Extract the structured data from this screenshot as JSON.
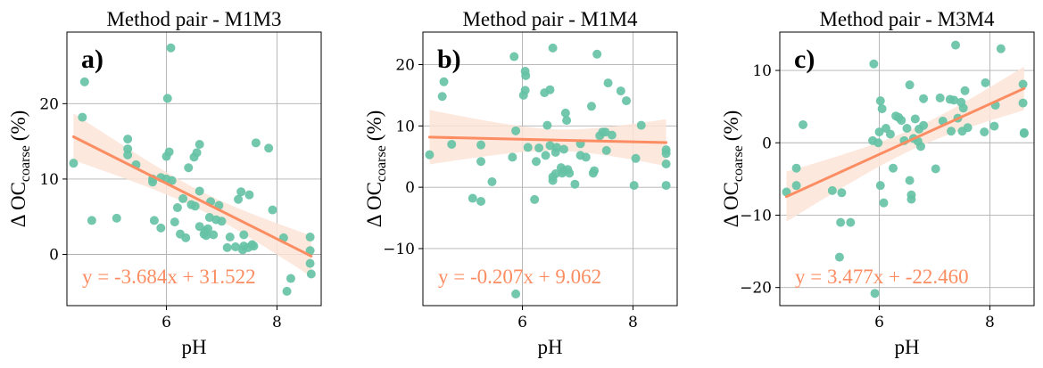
{
  "colors": {
    "points": "#66c2a5",
    "line": "#fc8d62",
    "band": "#fde4d8",
    "grid": "#b0b0b0"
  },
  "chart_data": [
    {
      "type": "scatter",
      "title": "Method pair - M1M3",
      "panel_label": "a)",
      "xlabel": "pH",
      "ylabel_main": "Δ OC",
      "ylabel_sub": "coarse",
      "ylabel_unit": "(%)",
      "equation": "y = -3.684x + 31.522",
      "fit": {
        "slope": -3.684,
        "intercept": 31.522
      },
      "xlim": [
        4.2,
        8.8
      ],
      "ylim": [
        -6.8,
        29.5
      ],
      "xticks": [
        6,
        8
      ],
      "yticks": [
        0,
        10,
        20
      ],
      "grid": true,
      "points": [
        [
          4.32,
          12.1
        ],
        [
          4.48,
          18.2
        ],
        [
          4.52,
          22.9
        ],
        [
          4.65,
          4.5
        ],
        [
          5.1,
          4.8
        ],
        [
          5.3,
          14.0
        ],
        [
          5.3,
          15.3
        ],
        [
          5.3,
          13.2
        ],
        [
          5.45,
          11.9
        ],
        [
          5.75,
          9.6
        ],
        [
          5.75,
          10.0
        ],
        [
          5.78,
          4.5
        ],
        [
          5.9,
          3.5
        ],
        [
          5.9,
          10.2
        ],
        [
          6.0,
          10.0
        ],
        [
          6.0,
          13.0
        ],
        [
          6.02,
          20.7
        ],
        [
          6.05,
          13.6
        ],
        [
          6.08,
          27.4
        ],
        [
          6.1,
          9.8
        ],
        [
          6.15,
          4.3
        ],
        [
          6.2,
          6.2
        ],
        [
          6.25,
          2.7
        ],
        [
          6.3,
          7.4
        ],
        [
          6.35,
          2.2
        ],
        [
          6.4,
          11.5
        ],
        [
          6.45,
          6.6
        ],
        [
          6.5,
          12.9
        ],
        [
          6.52,
          6.4
        ],
        [
          6.55,
          13.5
        ],
        [
          6.6,
          14.6
        ],
        [
          6.6,
          8.4
        ],
        [
          6.6,
          3.7
        ],
        [
          6.68,
          2.7
        ],
        [
          6.7,
          3.1
        ],
        [
          6.72,
          2.5
        ],
        [
          6.75,
          3.4
        ],
        [
          6.78,
          4.9
        ],
        [
          6.8,
          7.0
        ],
        [
          6.85,
          2.6
        ],
        [
          6.9,
          4.6
        ],
        [
          6.95,
          6.5
        ],
        [
          7.0,
          4.4
        ],
        [
          7.1,
          0.9
        ],
        [
          7.15,
          2.3
        ],
        [
          7.25,
          1.0
        ],
        [
          7.3,
          7.3
        ],
        [
          7.35,
          8.3
        ],
        [
          7.38,
          0.6
        ],
        [
          7.4,
          2.6
        ],
        [
          7.4,
          1.1
        ],
        [
          7.48,
          0.9
        ],
        [
          7.5,
          7.9
        ],
        [
          7.55,
          1.3
        ],
        [
          7.58,
          1.1
        ],
        [
          7.62,
          14.8
        ],
        [
          7.85,
          14.1
        ],
        [
          7.92,
          5.9
        ],
        [
          8.12,
          2.2
        ],
        [
          8.18,
          -4.9
        ],
        [
          8.25,
          -3.2
        ],
        [
          8.6,
          2.3
        ],
        [
          8.6,
          0.5
        ],
        [
          8.6,
          -1.2
        ],
        [
          8.62,
          -2.6
        ]
      ]
    },
    {
      "type": "scatter",
      "title": "Method pair - M1M4",
      "panel_label": "b)",
      "xlabel": "pH",
      "ylabel_main": "Δ OC",
      "ylabel_sub": "coarse",
      "ylabel_unit": "(%)",
      "equation": "y = -0.207x + 9.062",
      "fit": {
        "slope": -0.207,
        "intercept": 9.062
      },
      "xlim": [
        4.2,
        8.8
      ],
      "ylim": [
        -19.3,
        25.3
      ],
      "xticks": [
        6,
        8
      ],
      "yticks": [
        -10,
        0,
        10,
        20
      ],
      "grid": true,
      "points": [
        [
          4.32,
          5.3
        ],
        [
          4.55,
          14.8
        ],
        [
          4.58,
          17.2
        ],
        [
          4.72,
          7.0
        ],
        [
          5.1,
          -1.8
        ],
        [
          5.25,
          -2.3
        ],
        [
          5.25,
          4.2
        ],
        [
          5.25,
          6.9
        ],
        [
          5.45,
          0.9
        ],
        [
          5.82,
          4.9
        ],
        [
          5.85,
          21.3
        ],
        [
          5.88,
          9.2
        ],
        [
          5.88,
          -17.4
        ],
        [
          6.02,
          15.0
        ],
        [
          6.05,
          15.8
        ],
        [
          6.05,
          18.9
        ],
        [
          6.06,
          18.2
        ],
        [
          6.1,
          6.5
        ],
        [
          6.22,
          -2.0
        ],
        [
          6.25,
          4.2
        ],
        [
          6.3,
          6.4
        ],
        [
          6.4,
          15.4
        ],
        [
          6.42,
          5.2
        ],
        [
          6.45,
          10.1
        ],
        [
          6.5,
          6.8
        ],
        [
          6.5,
          15.9
        ],
        [
          6.55,
          22.7
        ],
        [
          6.55,
          1.1
        ],
        [
          6.55,
          1.7
        ],
        [
          6.6,
          5.7
        ],
        [
          6.6,
          2.2
        ],
        [
          6.62,
          6.5
        ],
        [
          6.7,
          3.2
        ],
        [
          6.72,
          2.3
        ],
        [
          6.75,
          6.2
        ],
        [
          6.75,
          2.7
        ],
        [
          6.78,
          12.1
        ],
        [
          6.8,
          10.9
        ],
        [
          6.82,
          2.9
        ],
        [
          6.85,
          2.3
        ],
        [
          6.95,
          0.5
        ],
        [
          7.05,
          5.2
        ],
        [
          7.05,
          7.1
        ],
        [
          7.15,
          4.9
        ],
        [
          7.25,
          13.2
        ],
        [
          7.28,
          2.3
        ],
        [
          7.3,
          2.7
        ],
        [
          7.35,
          21.7
        ],
        [
          7.4,
          8.4
        ],
        [
          7.45,
          9.0
        ],
        [
          7.5,
          9.0
        ],
        [
          7.52,
          6.0
        ],
        [
          7.55,
          17.0
        ],
        [
          7.62,
          8.5
        ],
        [
          7.78,
          15.7
        ],
        [
          7.88,
          14.1
        ],
        [
          8.05,
          4.7
        ],
        [
          8.02,
          0.3
        ],
        [
          8.15,
          10.1
        ],
        [
          8.6,
          6.1
        ],
        [
          8.6,
          5.5
        ],
        [
          8.6,
          3.8
        ],
        [
          8.6,
          0.3
        ]
      ]
    },
    {
      "type": "scatter",
      "title": "Method pair - M3M4",
      "panel_label": "c)",
      "xlabel": "pH",
      "ylabel_main": "Δ OC",
      "ylabel_sub": "coarse",
      "ylabel_unit": "(%)",
      "equation": "y = 3.477x + -22.460",
      "fit": {
        "slope": 3.477,
        "intercept": -22.46
      },
      "xlim": [
        4.2,
        8.8
      ],
      "ylim": [
        -22.5,
        15.3
      ],
      "xticks": [
        6,
        8
      ],
      "yticks": [
        -20,
        -10,
        0,
        10
      ],
      "grid": true,
      "points": [
        [
          4.32,
          -6.8
        ],
        [
          4.5,
          -3.5
        ],
        [
          4.5,
          -5.9
        ],
        [
          4.62,
          2.5
        ],
        [
          5.15,
          -6.6
        ],
        [
          5.28,
          -15.8
        ],
        [
          5.3,
          -11.0
        ],
        [
          5.32,
          -6.9
        ],
        [
          5.48,
          -11.0
        ],
        [
          5.88,
          0.3
        ],
        [
          5.9,
          10.9
        ],
        [
          5.92,
          -20.8
        ],
        [
          5.98,
          0.0
        ],
        [
          6.0,
          1.5
        ],
        [
          6.02,
          -5.9
        ],
        [
          6.02,
          5.8
        ],
        [
          6.05,
          4.7
        ],
        [
          6.08,
          -8.3
        ],
        [
          6.12,
          2.0
        ],
        [
          6.2,
          1.2
        ],
        [
          6.25,
          -3.5
        ],
        [
          6.3,
          3.7
        ],
        [
          6.35,
          3.5
        ],
        [
          6.4,
          3.1
        ],
        [
          6.45,
          0.3
        ],
        [
          6.5,
          2.0
        ],
        [
          6.55,
          8.0
        ],
        [
          6.55,
          -5.2
        ],
        [
          6.58,
          -7.2
        ],
        [
          6.58,
          -7.8
        ],
        [
          6.62,
          0.6
        ],
        [
          6.65,
          3.3
        ],
        [
          6.7,
          0.2
        ],
        [
          6.72,
          1.9
        ],
        [
          6.75,
          -0.5
        ],
        [
          6.8,
          6.1
        ],
        [
          6.8,
          2.4
        ],
        [
          7.02,
          -3.6
        ],
        [
          7.1,
          6.2
        ],
        [
          7.15,
          3.0
        ],
        [
          7.28,
          6.0
        ],
        [
          7.3,
          1.6
        ],
        [
          7.35,
          5.9
        ],
        [
          7.38,
          13.5
        ],
        [
          7.42,
          3.4
        ],
        [
          7.48,
          5.6
        ],
        [
          7.5,
          1.6
        ],
        [
          7.52,
          4.8
        ],
        [
          7.55,
          7.2
        ],
        [
          7.6,
          2.1
        ],
        [
          7.9,
          1.5
        ],
        [
          7.92,
          8.3
        ],
        [
          8.08,
          2.3
        ],
        [
          8.1,
          5.2
        ],
        [
          8.2,
          13.0
        ],
        [
          8.6,
          8.1
        ],
        [
          8.6,
          5.5
        ],
        [
          8.62,
          1.4
        ],
        [
          8.62,
          1.3
        ]
      ]
    }
  ]
}
